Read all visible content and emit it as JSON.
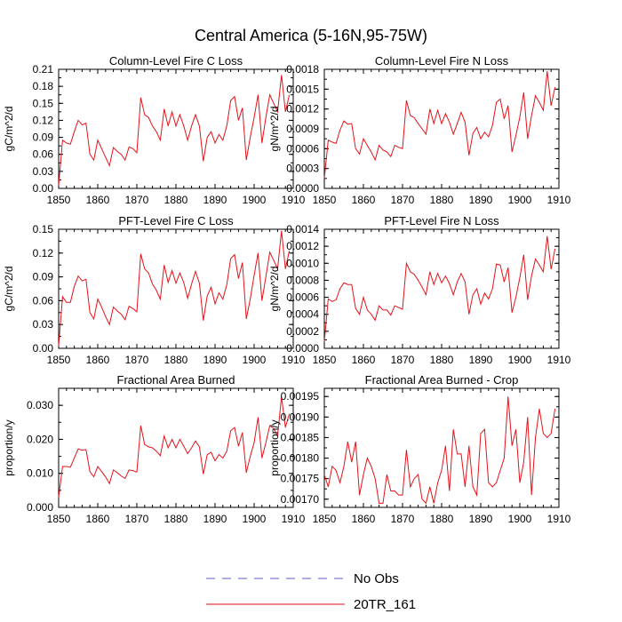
{
  "figure": {
    "title": "Central America (5-16N,95-75W)",
    "legend": [
      {
        "label": "No Obs",
        "style": "dashed",
        "color": "#5b5bd6"
      },
      {
        "label": "20TR_161",
        "style": "solid",
        "color": "#e4121b"
      }
    ]
  },
  "chart_data": [
    {
      "type": "line",
      "title": "Column-Level Fire C Loss",
      "ylabel": "gC/m^2/d",
      "xlim": [
        1850,
        1910
      ],
      "ylim": [
        0,
        0.21
      ],
      "xticks": [
        "1850",
        "1860",
        "1870",
        "1880",
        "1890",
        "1900",
        "1910"
      ],
      "yticks": [
        "0.00",
        "0.03",
        "0.06",
        "0.09",
        "0.12",
        "0.15",
        "0.18",
        "0.21"
      ],
      "series": [
        {
          "name": "20TR_161",
          "color": "#e4121b",
          "x": [
            1850,
            1851,
            1852,
            1853,
            1854,
            1855,
            1856,
            1857,
            1858,
            1859,
            1860,
            1861,
            1862,
            1863,
            1864,
            1865,
            1866,
            1867,
            1868,
            1869,
            1870,
            1871,
            1872,
            1873,
            1874,
            1875,
            1876,
            1877,
            1878,
            1879,
            1880,
            1881,
            1882,
            1883,
            1884,
            1885,
            1886,
            1887,
            1888,
            1889,
            1890,
            1891,
            1892,
            1893,
            1894,
            1895,
            1896,
            1897,
            1898,
            1899,
            1900,
            1901,
            1902,
            1903,
            1904,
            1905,
            1906,
            1907,
            1908,
            1909
          ],
          "values": [
            0.005,
            0.085,
            0.08,
            0.078,
            0.1,
            0.12,
            0.112,
            0.115,
            0.06,
            0.05,
            0.085,
            0.07,
            0.055,
            0.04,
            0.072,
            0.065,
            0.06,
            0.05,
            0.073,
            0.07,
            0.063,
            0.16,
            0.13,
            0.125,
            0.11,
            0.1,
            0.085,
            0.14,
            0.11,
            0.135,
            0.11,
            0.13,
            0.11,
            0.085,
            0.11,
            0.13,
            0.11,
            0.048,
            0.09,
            0.1,
            0.08,
            0.095,
            0.085,
            0.11,
            0.155,
            0.162,
            0.12,
            0.142,
            0.05,
            0.09,
            0.125,
            0.165,
            0.08,
            0.125,
            0.165,
            0.15,
            0.135,
            0.2,
            0.135,
            0.165
          ]
        }
      ]
    },
    {
      "type": "line",
      "title": "Column-Level Fire N Loss",
      "ylabel": "gN/m^2/d",
      "xlim": [
        1850,
        1910
      ],
      "ylim": [
        0,
        0.0018
      ],
      "xticks": [
        "1850",
        "1860",
        "1870",
        "1880",
        "1890",
        "1900",
        "1910"
      ],
      "yticks": [
        "0.0000",
        "0.0003",
        "0.0006",
        "0.0009",
        "0.0012",
        "0.0015",
        "0.0018"
      ],
      "series": [
        {
          "name": "20TR_161",
          "color": "#e4121b",
          "x": [
            1850,
            1851,
            1852,
            1853,
            1854,
            1855,
            1856,
            1857,
            1858,
            1859,
            1860,
            1861,
            1862,
            1863,
            1864,
            1865,
            1866,
            1867,
            1868,
            1869,
            1870,
            1871,
            1872,
            1873,
            1874,
            1875,
            1876,
            1877,
            1878,
            1879,
            1880,
            1881,
            1882,
            1883,
            1884,
            1885,
            1886,
            1887,
            1888,
            1889,
            1890,
            1891,
            1892,
            1893,
            1894,
            1895,
            1896,
            1897,
            1898,
            1899,
            1900,
            1901,
            1902,
            1903,
            1904,
            1905,
            1906,
            1907,
            1908,
            1909
          ],
          "values": [
            0.00015,
            0.00073,
            0.0007,
            0.00068,
            0.00088,
            0.00102,
            0.00097,
            0.00098,
            0.0006,
            0.00052,
            0.00075,
            0.00065,
            0.00055,
            0.00043,
            0.00065,
            0.00058,
            0.00055,
            0.00048,
            0.00065,
            0.00062,
            0.0006,
            0.00133,
            0.0011,
            0.00107,
            0.00098,
            0.0009,
            0.00082,
            0.0012,
            0.00098,
            0.00118,
            0.00098,
            0.00113,
            0.001,
            0.00082,
            0.00098,
            0.00115,
            0.001,
            0.0005,
            0.00083,
            0.00092,
            0.00075,
            0.00085,
            0.00078,
            0.00095,
            0.0013,
            0.00135,
            0.00105,
            0.00125,
            0.00055,
            0.0008,
            0.00108,
            0.00145,
            0.00075,
            0.0011,
            0.0014,
            0.0013,
            0.00118,
            0.00177,
            0.00125,
            0.00153
          ]
        }
      ]
    },
    {
      "type": "line",
      "title": "PFT-Level Fire C Loss",
      "ylabel": "gC/m^2/d",
      "xlim": [
        1850,
        1910
      ],
      "ylim": [
        0,
        0.15
      ],
      "xticks": [
        "1850",
        "1860",
        "1870",
        "1880",
        "1890",
        "1900",
        "1910"
      ],
      "yticks": [
        "0.00",
        "0.03",
        "0.06",
        "0.09",
        "0.12",
        "0.15"
      ],
      "series": [
        {
          "name": "20TR_161",
          "color": "#e4121b",
          "x": [
            1850,
            1851,
            1852,
            1853,
            1854,
            1855,
            1856,
            1857,
            1858,
            1859,
            1860,
            1861,
            1862,
            1863,
            1864,
            1865,
            1866,
            1867,
            1868,
            1869,
            1870,
            1871,
            1872,
            1873,
            1874,
            1875,
            1876,
            1877,
            1878,
            1879,
            1880,
            1881,
            1882,
            1883,
            1884,
            1885,
            1886,
            1887,
            1888,
            1889,
            1890,
            1891,
            1892,
            1893,
            1894,
            1895,
            1896,
            1897,
            1898,
            1899,
            1900,
            1901,
            1902,
            1903,
            1904,
            1905,
            1906,
            1907,
            1908,
            1909
          ],
          "values": [
            0.003,
            0.065,
            0.058,
            0.058,
            0.078,
            0.091,
            0.085,
            0.087,
            0.045,
            0.037,
            0.062,
            0.052,
            0.04,
            0.03,
            0.052,
            0.047,
            0.043,
            0.036,
            0.053,
            0.05,
            0.046,
            0.119,
            0.1,
            0.095,
            0.081,
            0.073,
            0.062,
            0.105,
            0.083,
            0.098,
            0.082,
            0.095,
            0.083,
            0.063,
            0.081,
            0.097,
            0.082,
            0.035,
            0.066,
            0.077,
            0.056,
            0.07,
            0.062,
            0.08,
            0.113,
            0.118,
            0.088,
            0.108,
            0.037,
            0.062,
            0.092,
            0.12,
            0.06,
            0.09,
            0.121,
            0.111,
            0.1,
            0.148,
            0.1,
            0.123
          ]
        }
      ]
    },
    {
      "type": "line",
      "title": "PFT-Level Fire N Loss",
      "ylabel": "gN/m^2/d",
      "xlim": [
        1850,
        1910
      ],
      "ylim": [
        0,
        0.0014
      ],
      "xticks": [
        "1850",
        "1860",
        "1870",
        "1880",
        "1890",
        "1900",
        "1910"
      ],
      "yticks": [
        "0.0000",
        "0.0002",
        "0.0004",
        "0.0006",
        "0.0008",
        "0.0010",
        "0.0012",
        "0.0014"
      ],
      "series": [
        {
          "name": "20TR_161",
          "color": "#e4121b",
          "x": [
            1850,
            1851,
            1852,
            1853,
            1854,
            1855,
            1856,
            1857,
            1858,
            1859,
            1860,
            1861,
            1862,
            1863,
            1864,
            1865,
            1866,
            1867,
            1868,
            1869,
            1870,
            1871,
            1872,
            1873,
            1874,
            1875,
            1876,
            1877,
            1878,
            1879,
            1880,
            1881,
            1882,
            1883,
            1884,
            1885,
            1886,
            1887,
            1888,
            1889,
            1890,
            1891,
            1892,
            1893,
            1894,
            1895,
            1896,
            1897,
            1898,
            1899,
            1900,
            1901,
            1902,
            1903,
            1904,
            1905,
            1906,
            1907,
            1908,
            1909
          ],
          "values": [
            8e-05,
            0.00058,
            0.00055,
            0.00057,
            0.0007,
            0.00077,
            0.00075,
            0.00075,
            0.00047,
            0.0004,
            0.0006,
            0.00045,
            0.0004,
            0.00033,
            0.0005,
            0.00045,
            0.00045,
            0.00039,
            0.0005,
            0.00048,
            0.00046,
            0.001,
            0.0009,
            0.00087,
            0.0008,
            0.00072,
            0.00063,
            0.0009,
            0.00075,
            0.00088,
            0.00077,
            0.00085,
            0.00076,
            0.00063,
            0.00078,
            0.00088,
            0.00078,
            0.0004,
            0.00063,
            0.0007,
            0.00052,
            0.00065,
            0.00058,
            0.0007,
            0.00099,
            0.00098,
            0.00078,
            0.00095,
            0.00042,
            0.0006,
            0.00083,
            0.0011,
            0.00057,
            0.00085,
            0.00105,
            0.00098,
            0.0009,
            0.00132,
            0.00093,
            0.00117
          ]
        }
      ]
    },
    {
      "type": "line",
      "title": "Fractional Area Burned",
      "ylabel": "proportion/y",
      "xlim": [
        1850,
        1910
      ],
      "ylim": [
        0,
        0.035
      ],
      "xticks": [
        "1850",
        "1860",
        "1870",
        "1880",
        "1890",
        "1900",
        "1910"
      ],
      "yticks": [
        "0.000",
        "0.010",
        "0.020",
        "0.030"
      ],
      "series": [
        {
          "name": "20TR_161",
          "color": "#e4121b",
          "x": [
            1850,
            1851,
            1852,
            1853,
            1854,
            1855,
            1856,
            1857,
            1858,
            1859,
            1860,
            1861,
            1862,
            1863,
            1864,
            1865,
            1866,
            1867,
            1868,
            1869,
            1870,
            1871,
            1872,
            1873,
            1874,
            1875,
            1876,
            1877,
            1878,
            1879,
            1880,
            1881,
            1882,
            1883,
            1884,
            1885,
            1886,
            1887,
            1888,
            1889,
            1890,
            1891,
            1892,
            1893,
            1894,
            1895,
            1896,
            1897,
            1898,
            1899,
            1900,
            1901,
            1902,
            1903,
            1904,
            1905,
            1906,
            1907,
            1908,
            1909
          ],
          "values": [
            0.003,
            0.012,
            0.012,
            0.0118,
            0.0145,
            0.0172,
            0.0168,
            0.017,
            0.0105,
            0.009,
            0.012,
            0.0105,
            0.009,
            0.007,
            0.011,
            0.0102,
            0.0092,
            0.0085,
            0.011,
            0.0108,
            0.0104,
            0.024,
            0.0185,
            0.0178,
            0.0175,
            0.0165,
            0.0152,
            0.021,
            0.0175,
            0.02,
            0.0175,
            0.02,
            0.018,
            0.0158,
            0.0175,
            0.0195,
            0.0178,
            0.0098,
            0.0155,
            0.0162,
            0.0137,
            0.0155,
            0.0145,
            0.0165,
            0.0225,
            0.0235,
            0.018,
            0.022,
            0.0102,
            0.015,
            0.019,
            0.0265,
            0.0145,
            0.019,
            0.024,
            0.0232,
            0.021,
            0.0325,
            0.0235,
            0.0275
          ]
        }
      ]
    },
    {
      "type": "line",
      "title": "Fractional Area Burned - Crop",
      "ylabel": "proportion/y",
      "xlim": [
        1850,
        1910
      ],
      "ylim": [
        0.00168,
        0.00197
      ],
      "xticks": [
        "1850",
        "1860",
        "1870",
        "1880",
        "1890",
        "1900",
        "1910"
      ],
      "yticks": [
        "0.00170",
        "0.00175",
        "0.00180",
        "0.00185",
        "0.00190",
        "0.00195"
      ],
      "series": [
        {
          "name": "20TR_161",
          "color": "#e4121b",
          "x": [
            1850,
            1851,
            1852,
            1853,
            1854,
            1855,
            1856,
            1857,
            1858,
            1859,
            1860,
            1861,
            1862,
            1863,
            1864,
            1865,
            1866,
            1867,
            1868,
            1869,
            1870,
            1871,
            1872,
            1873,
            1874,
            1875,
            1876,
            1877,
            1878,
            1879,
            1880,
            1881,
            1882,
            1883,
            1884,
            1885,
            1886,
            1887,
            1888,
            1889,
            1890,
            1891,
            1892,
            1893,
            1894,
            1895,
            1896,
            1897,
            1898,
            1899,
            1900,
            1901,
            1902,
            1903,
            1904,
            1905,
            1906,
            1907,
            1908,
            1909
          ],
          "values": [
            0.00176,
            0.00173,
            0.00178,
            0.00177,
            0.00174,
            0.00178,
            0.00184,
            0.00179,
            0.00184,
            0.00171,
            0.00176,
            0.0018,
            0.00178,
            0.00175,
            0.00169,
            0.00169,
            0.00176,
            0.00172,
            0.00172,
            0.00171,
            0.00171,
            0.00182,
            0.00173,
            0.00175,
            0.00176,
            0.0017,
            0.00169,
            0.00173,
            0.00169,
            0.00174,
            0.00177,
            0.00183,
            0.00172,
            0.00187,
            0.00181,
            0.00181,
            0.00173,
            0.00183,
            0.00173,
            0.00171,
            0.00186,
            0.00187,
            0.00174,
            0.00173,
            0.00174,
            0.00177,
            0.0018,
            0.00195,
            0.00183,
            0.00187,
            0.00174,
            0.00179,
            0.0019,
            0.00171,
            0.00185,
            0.00192,
            0.00186,
            0.00185,
            0.00186,
            0.00192
          ]
        }
      ]
    }
  ]
}
